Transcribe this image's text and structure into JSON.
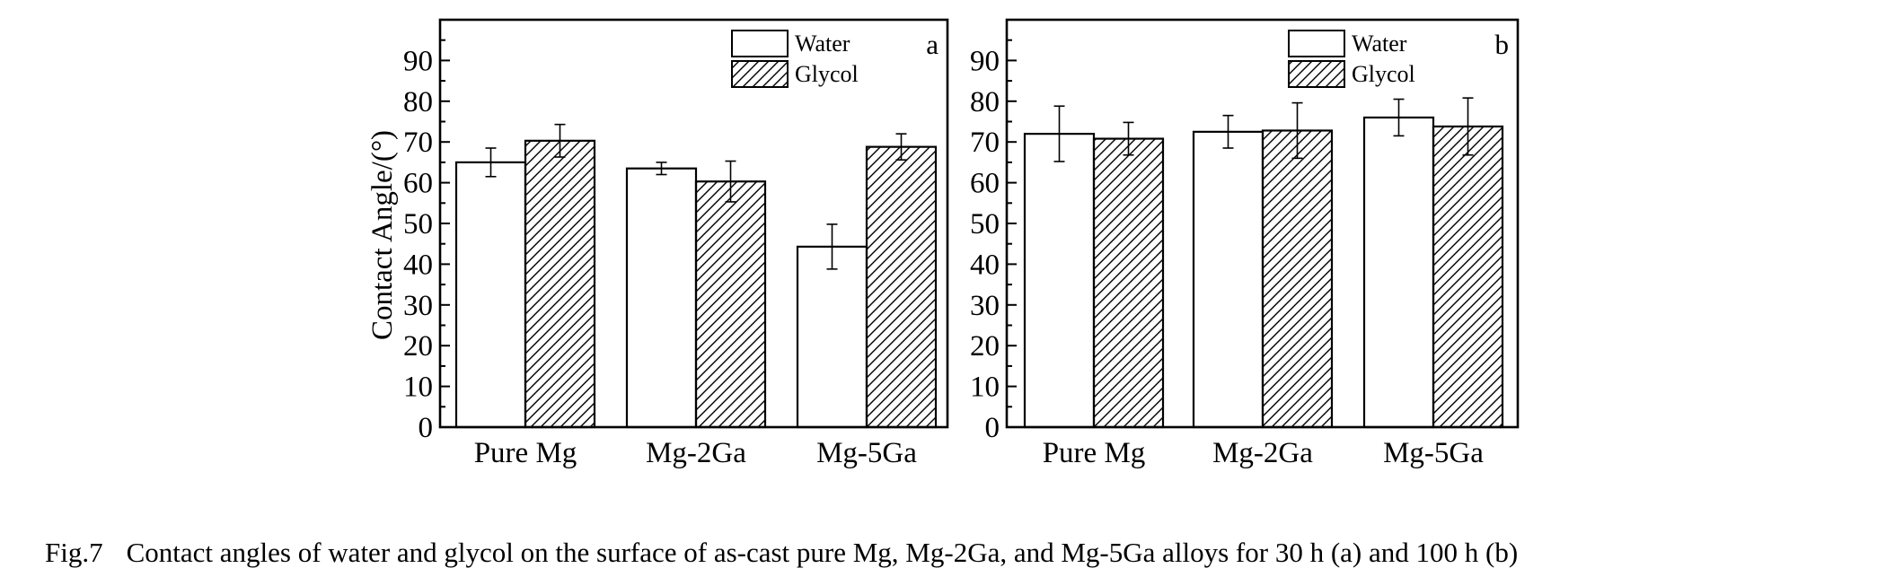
{
  "chart_data": [
    {
      "type": "bar",
      "panel_label": "a",
      "categories": [
        "Pure Mg",
        "Mg-2Ga",
        "Mg-5Ga"
      ],
      "series": [
        {
          "name": "Water",
          "values": [
            65,
            63.5,
            44.3
          ],
          "errors": [
            3.5,
            1.5,
            5.5
          ],
          "pattern": "none"
        },
        {
          "name": "Glycol",
          "values": [
            70.3,
            60.3,
            68.8
          ],
          "errors": [
            4.0,
            5.0,
            3.2
          ],
          "pattern": "hatched"
        }
      ],
      "ylabel": "Contact Angle/(°)",
      "ylim": [
        0,
        100
      ],
      "yticks": [
        0,
        10,
        20,
        30,
        40,
        50,
        60,
        70,
        80,
        90
      ],
      "grid": false,
      "legend": "top-center"
    },
    {
      "type": "bar",
      "panel_label": "b",
      "categories": [
        "Pure Mg",
        "Mg-2Ga",
        "Mg-5Ga"
      ],
      "series": [
        {
          "name": "Water",
          "values": [
            72,
            72.5,
            76
          ],
          "errors": [
            6.8,
            4.0,
            4.5
          ],
          "pattern": "none"
        },
        {
          "name": "Glycol",
          "values": [
            70.8,
            72.8,
            73.8
          ],
          "errors": [
            4.0,
            6.8,
            7.0
          ],
          "pattern": "hatched"
        }
      ],
      "ylabel": "",
      "ylim": [
        0,
        100
      ],
      "yticks": [
        0,
        10,
        20,
        30,
        40,
        50,
        60,
        70,
        80,
        90
      ],
      "grid": false,
      "legend": "top-center"
    }
  ],
  "caption": {
    "label": "Fig.7",
    "text": "Contact angles of water and glycol on the surface of as-cast pure Mg, Mg-2Ga, and Mg-5Ga alloys for 30 h (a) and 100 h (b)"
  }
}
